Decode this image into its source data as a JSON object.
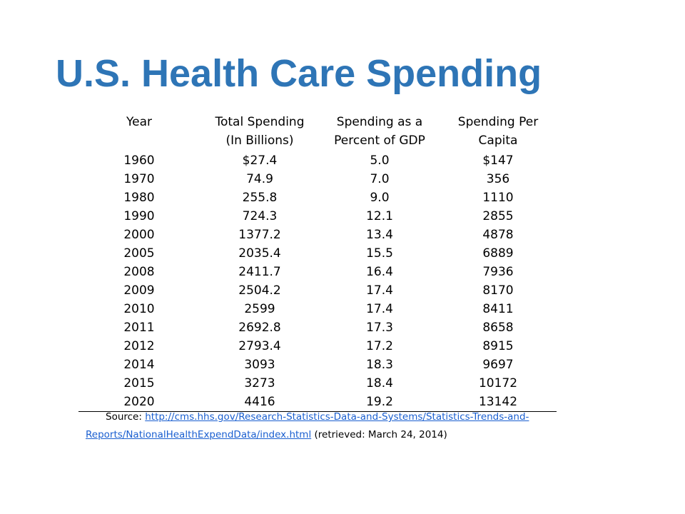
{
  "title": "U.S. Health Care Spending",
  "table": {
    "headers": [
      [
        "Year",
        ""
      ],
      [
        "Total Spending",
        "(In Billions)"
      ],
      [
        "Spending as a",
        "Percent of GDP"
      ],
      [
        "Spending Per",
        "Capita"
      ]
    ],
    "rows": [
      [
        "1960",
        "$27.4",
        "5.0",
        "$147"
      ],
      [
        "1970",
        "74.9",
        "7.0",
        "356"
      ],
      [
        "1980",
        "255.8",
        "9.0",
        "1110"
      ],
      [
        "1990",
        "724.3",
        "12.1",
        "2855"
      ],
      [
        "2000",
        "1377.2",
        "13.4",
        "4878"
      ],
      [
        "2005",
        "2035.4",
        "15.5",
        "6889"
      ],
      [
        "2008",
        "2411.7",
        "16.4",
        "7936"
      ],
      [
        "2009",
        "2504.2",
        "17.4",
        "8170"
      ],
      [
        "2010",
        "2599",
        "17.4",
        "8411"
      ],
      [
        "2011",
        "2692.8",
        "17.3",
        "8658"
      ],
      [
        "2012",
        "2793.4",
        "17.2",
        "8915"
      ],
      [
        "2014",
        "3093",
        "18.3",
        "9697"
      ],
      [
        "2015",
        "3273",
        "18.4",
        "10172"
      ],
      [
        "2020",
        "4416",
        "19.2",
        "13142"
      ]
    ]
  },
  "source": {
    "prefix": "Source: ",
    "link_part1": "http://cms.hhs.gov/Research-Statistics-Data-and-Systems/Statistics-Trends-and-",
    "link_part2": "Reports/NationalHealthExpendData/index.html",
    "suffix": " (retrieved: March 24, 2014)"
  }
}
